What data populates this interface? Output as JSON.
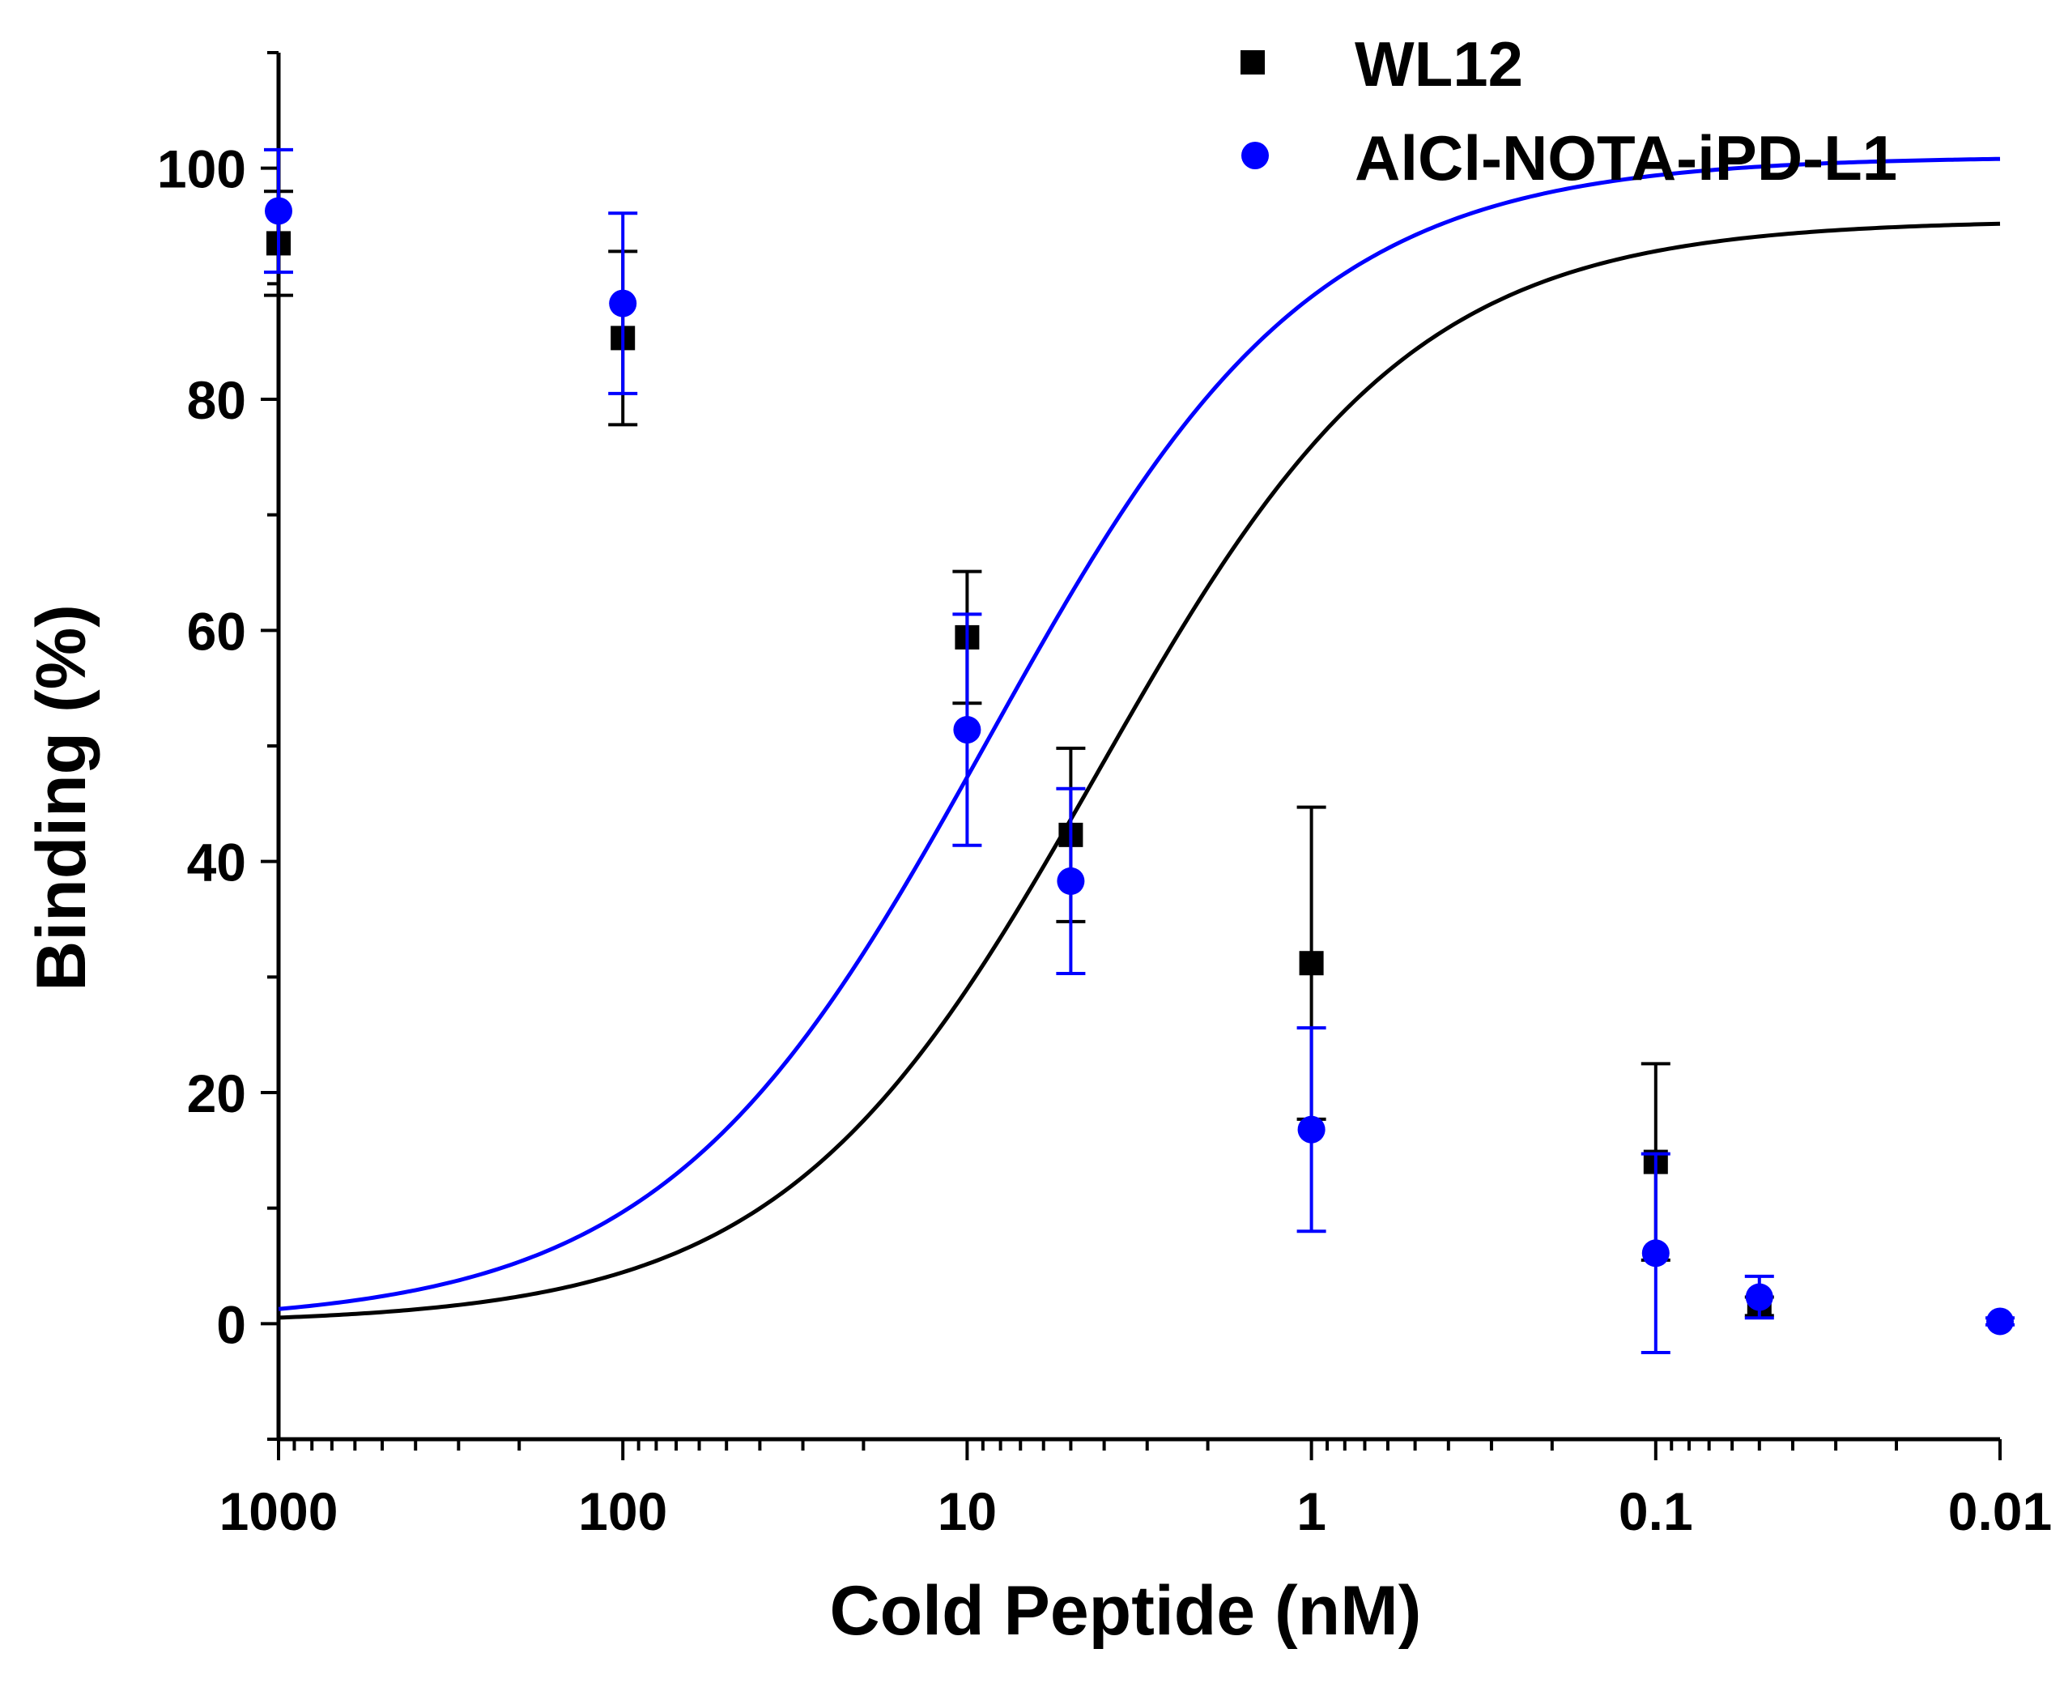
{
  "chart_data": {
    "type": "scatter",
    "title": "",
    "xlabel": "Cold Peptide (nM)",
    "ylabel": "Binding (%)",
    "xscale": "log",
    "x_reversed": true,
    "xlim": [
      1000,
      0.01
    ],
    "ylim": [
      -10,
      110
    ],
    "x_tick_values": [
      1000,
      100,
      10,
      1,
      0.1,
      0.01
    ],
    "x_tick_labels": [
      "1000",
      "100",
      "10",
      "1",
      "0.1",
      "0.01"
    ],
    "y_tick_values": [
      0,
      20,
      40,
      60,
      80,
      100
    ],
    "y_tick_labels": [
      "0",
      "20",
      "40",
      "60",
      "80",
      "100"
    ],
    "grid": false,
    "legend_position": "top-right",
    "series": [
      {
        "name": "WL12",
        "color": "#000000",
        "marker": "square",
        "x": [
          1000,
          100,
          10,
          5,
          1,
          0.1,
          0.05
        ],
        "y": [
          93.5,
          85.3,
          59.4,
          42.3,
          31.2,
          14.0,
          1.5
        ],
        "err": [
          4.5,
          7.5,
          5.7,
          7.5,
          13.5,
          8.5,
          0.8
        ],
        "fit": {
          "top": 95.5,
          "bottom": 0,
          "logIC50": 0.62,
          "hill": 0.95
        }
      },
      {
        "name": "AlCl-NOTA-iPD-L1",
        "color": "#0000ff",
        "marker": "circle",
        "x": [
          1000,
          100,
          10,
          5,
          1,
          0.1,
          0.05,
          0.01
        ],
        "y": [
          96.3,
          88.3,
          51.4,
          38.3,
          16.8,
          6.1,
          2.3,
          0.2
        ],
        "err": [
          5.3,
          7.8,
          10.0,
          8.0,
          8.8,
          8.6,
          1.8,
          0.3
        ],
        "fit": {
          "top": 101,
          "bottom": 0,
          "logIC50": 0.94,
          "hill": 0.92
        }
      }
    ]
  },
  "legend": {
    "items": [
      {
        "label": "WL12"
      },
      {
        "label": "AlCl-NOTA-iPD-L1"
      }
    ]
  }
}
